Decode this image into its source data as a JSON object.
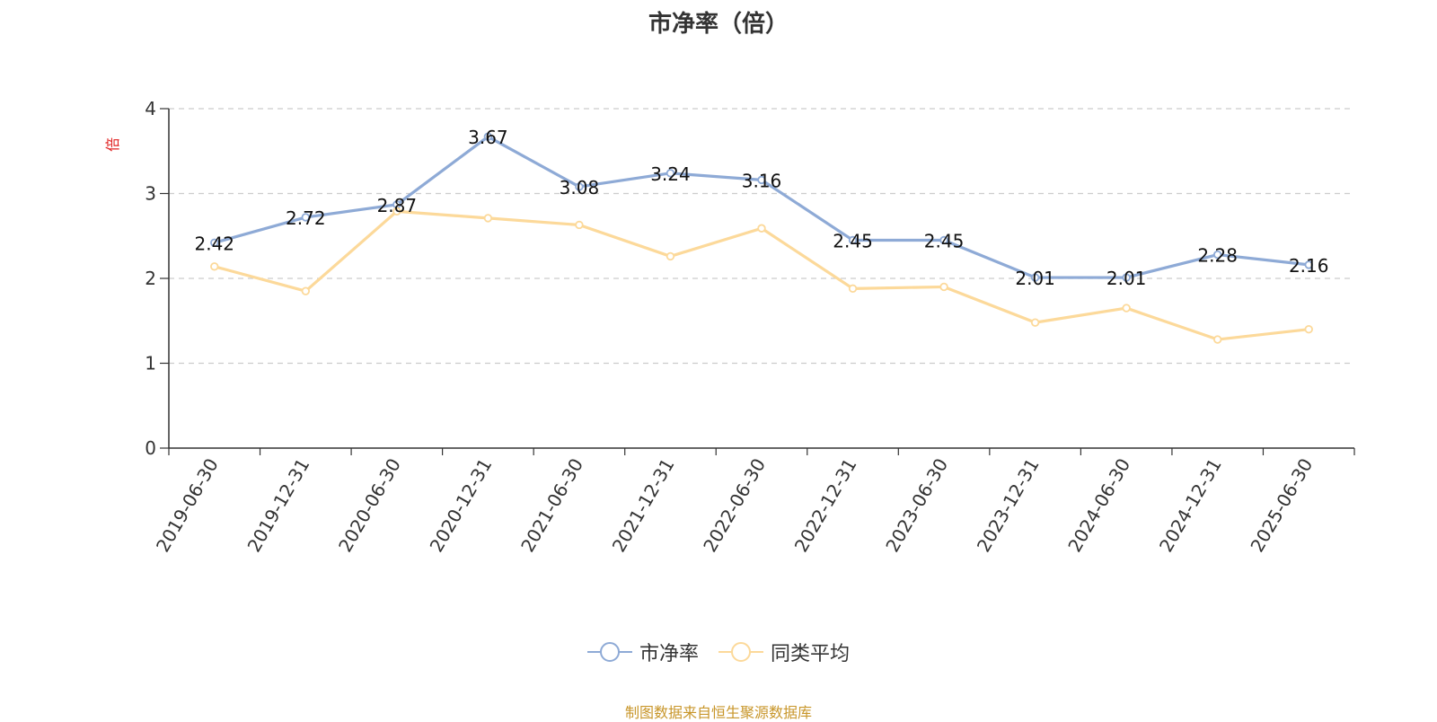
{
  "title": "市净率（倍）",
  "source": "制图数据来自恒生聚源数据库",
  "chart_data": {
    "type": "line",
    "title": "市净率（倍）",
    "ylabel": "倍",
    "ylim": [
      0,
      4
    ],
    "yticks": [
      0,
      1,
      2,
      3,
      4
    ],
    "grid": true,
    "legend_position": "bottom",
    "categories": [
      "2019-06-30",
      "2019-12-31",
      "2020-06-30",
      "2020-12-31",
      "2021-06-30",
      "2021-12-31",
      "2022-06-30",
      "2022-12-31",
      "2023-06-30",
      "2023-12-31",
      "2024-06-30",
      "2024-12-31",
      "2025-06-30"
    ],
    "series": [
      {
        "name": "市净率",
        "color": "#8eaad6",
        "show_labels": true,
        "values": [
          2.42,
          2.72,
          2.87,
          3.67,
          3.08,
          3.24,
          3.16,
          2.45,
          2.45,
          2.01,
          2.01,
          2.28,
          2.16
        ]
      },
      {
        "name": "同类平均",
        "color": "#fcd99a",
        "show_labels": false,
        "values": [
          2.14,
          1.85,
          2.79,
          2.71,
          2.63,
          2.26,
          2.59,
          1.88,
          1.9,
          1.48,
          1.65,
          1.28,
          1.4
        ]
      }
    ]
  }
}
